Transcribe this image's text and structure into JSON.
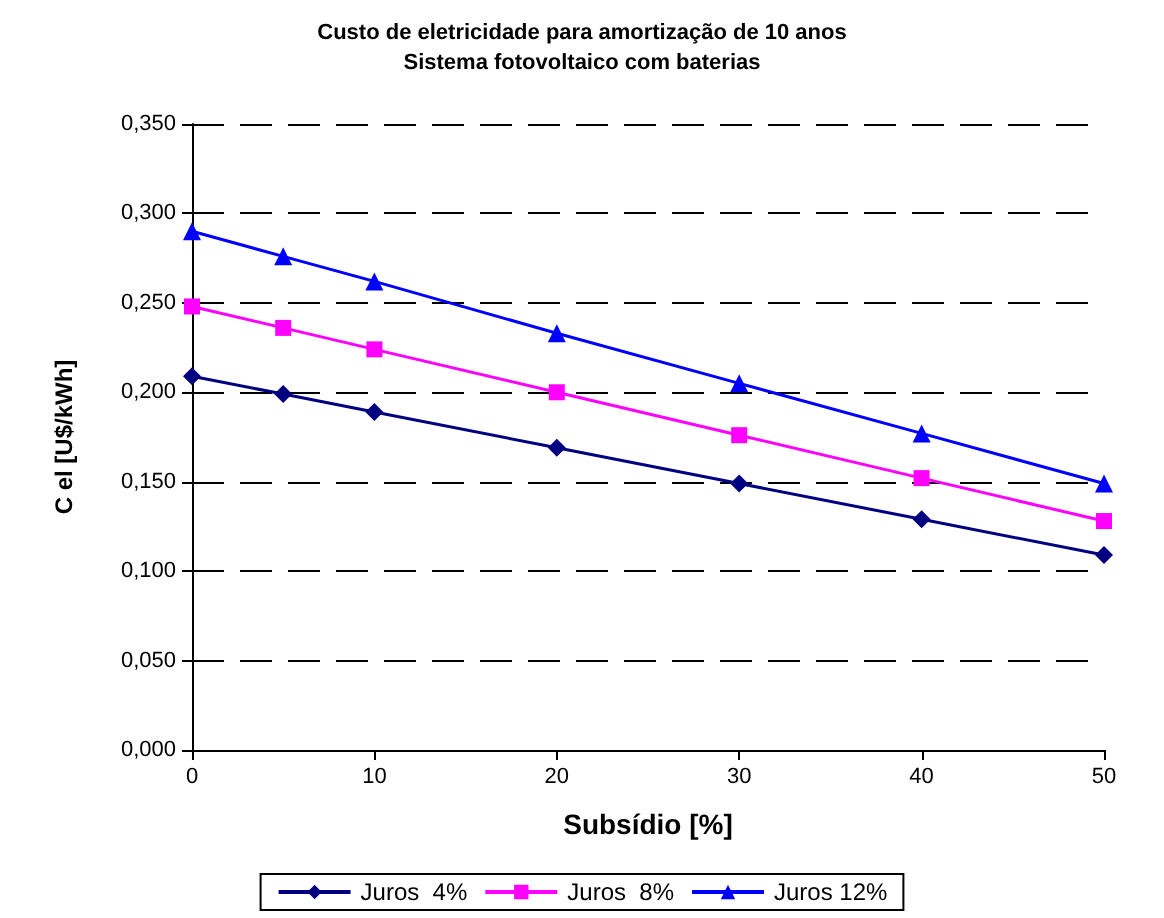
{
  "chart_data": {
    "type": "line",
    "title": "Custo de eletricidade para amortização de 10 anos",
    "subtitle": "Sistema fotovoltaico com baterias",
    "xlabel": "Subsídio [%]",
    "ylabel": "C el [U$/kWh]",
    "x": [
      0,
      5,
      10,
      20,
      30,
      40,
      50
    ],
    "series": [
      {
        "name": "Juros  4%",
        "color": "#000080",
        "marker": "diamond",
        "values": [
          0.209,
          0.199,
          0.189,
          0.169,
          0.149,
          0.129,
          0.109
        ]
      },
      {
        "name": "Juros  8%",
        "color": "#ff00ff",
        "marker": "square",
        "values": [
          0.248,
          0.236,
          0.224,
          0.2,
          0.176,
          0.152,
          0.128
        ]
      },
      {
        "name": "Juros 12%",
        "color": "#0000ff",
        "marker": "triangle",
        "values": [
          0.29,
          0.276,
          0.262,
          0.233,
          0.205,
          0.177,
          0.149
        ]
      }
    ],
    "xlim": [
      0,
      50
    ],
    "xticks": [
      0,
      10,
      20,
      30,
      40,
      50
    ],
    "ylim": [
      0,
      0.35
    ],
    "yticks": [
      {
        "value": 0,
        "label": "0,000"
      },
      {
        "value": 0.05,
        "label": "0,050"
      },
      {
        "value": 0.1,
        "label": "0,100"
      },
      {
        "value": 0.15,
        "label": "0,150"
      },
      {
        "value": 0.2,
        "label": "0,200"
      },
      {
        "value": 0.25,
        "label": "0,250"
      },
      {
        "value": 0.3,
        "label": "0,300"
      },
      {
        "value": 0.35,
        "label": "0,350"
      }
    ],
    "grid": "y",
    "legend": "bottom",
    "line_style": "solid"
  }
}
